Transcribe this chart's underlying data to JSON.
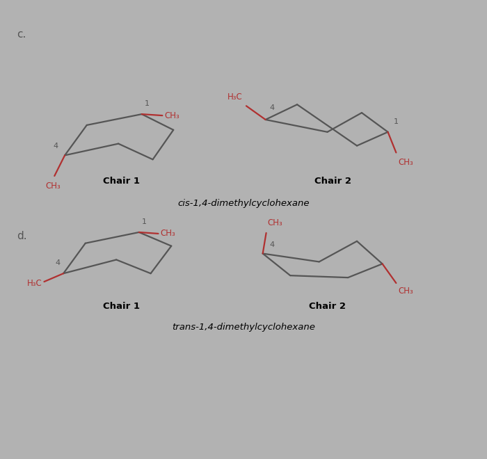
{
  "bg_color": "#b2b2b2",
  "line_color": "#555555",
  "red_color": "#b03030",
  "label_c": "c.",
  "label_d": "d.",
  "chair1_label": "Chair 1",
  "chair2_label": "Chair 2",
  "cis_label": "cis-1,4-dimethylcyclohexane",
  "trans_label": "trans-1,4-dimethylcyclohexane",
  "num1": "1",
  "num4": "4",
  "ch3": "CH₃",
  "h3c": "H₃C"
}
